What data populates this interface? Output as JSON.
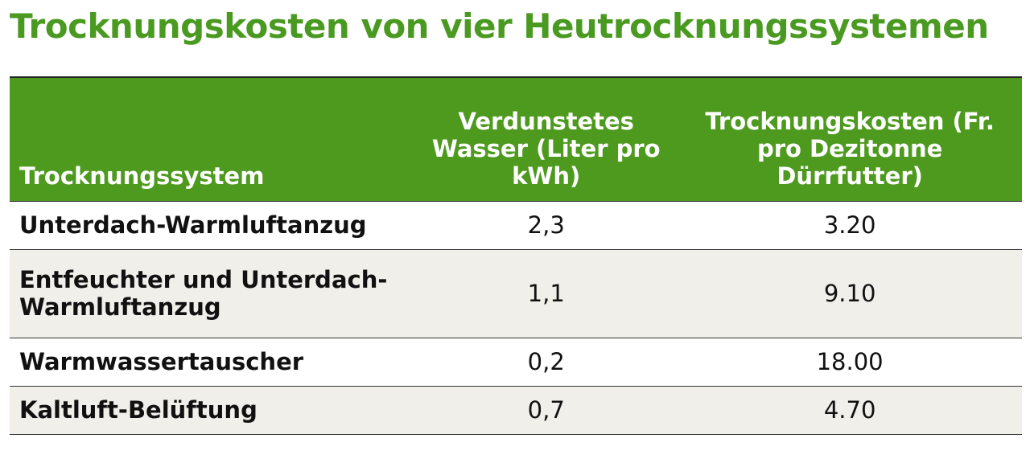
{
  "header": {
    "title": "Trocknungskosten von vier Heutrocknungssystemen"
  },
  "table": {
    "columns": [
      "Trocknungssystem",
      "Verdunstetes Wasser (Liter pro kWh)",
      "Trocknungskosten (Fr. pro Dezitonne Dürrfutter)"
    ],
    "rows": [
      [
        "Unterdach-Warmluftanzug",
        "2,3",
        "3.20"
      ],
      [
        "Entfeuchter und Unterdach-Warmluftanzug",
        "1,1",
        "9.10"
      ],
      [
        "Warmwassertauscher",
        "0,2",
        "18.00"
      ],
      [
        "Kaltluft-Belüftung",
        "0,7",
        "4.70"
      ]
    ]
  }
}
